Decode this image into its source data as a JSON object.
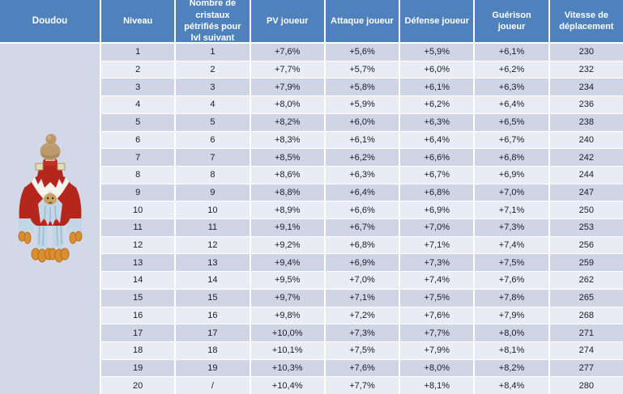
{
  "table": {
    "columns": [
      "Doudou",
      "Niveau",
      "Nombre de cristaux pétrifiés pour lvl suivant",
      "PV joueur",
      "Attaque joueur",
      "Défense joueur",
      "Guérison joueur",
      "Vitesse de déplacement"
    ],
    "rows": [
      [
        "1",
        "1",
        "+7,6%",
        "+5,6%",
        "+5,9%",
        "+6,1%",
        "230"
      ],
      [
        "2",
        "2",
        "+7,7%",
        "+5,7%",
        "+6,0%",
        "+6,2%",
        "232"
      ],
      [
        "3",
        "3",
        "+7,9%",
        "+5,8%",
        "+6,1%",
        "+6,3%",
        "234"
      ],
      [
        "4",
        "4",
        "+8,0%",
        "+5,9%",
        "+6,2%",
        "+6,4%",
        "236"
      ],
      [
        "5",
        "5",
        "+8,2%",
        "+6,0%",
        "+6,3%",
        "+6,5%",
        "238"
      ],
      [
        "6",
        "6",
        "+8,3%",
        "+6,1%",
        "+6,4%",
        "+6,7%",
        "240"
      ],
      [
        "7",
        "7",
        "+8,5%",
        "+6,2%",
        "+6,6%",
        "+6,8%",
        "242"
      ],
      [
        "8",
        "8",
        "+8,6%",
        "+6,3%",
        "+6,7%",
        "+6,9%",
        "244"
      ],
      [
        "9",
        "9",
        "+8,8%",
        "+6,4%",
        "+6,8%",
        "+7,0%",
        "247"
      ],
      [
        "10",
        "10",
        "+8,9%",
        "+6,6%",
        "+6,9%",
        "+7,1%",
        "250"
      ],
      [
        "11",
        "11",
        "+9,1%",
        "+6,7%",
        "+7,0%",
        "+7,3%",
        "253"
      ],
      [
        "12",
        "12",
        "+9,2%",
        "+6,8%",
        "+7,1%",
        "+7,4%",
        "256"
      ],
      [
        "13",
        "13",
        "+9,4%",
        "+6,9%",
        "+7,3%",
        "+7,5%",
        "259"
      ],
      [
        "14",
        "14",
        "+9,5%",
        "+7,0%",
        "+7,4%",
        "+7,6%",
        "262"
      ],
      [
        "15",
        "15",
        "+9,7%",
        "+7,1%",
        "+7,5%",
        "+7,8%",
        "265"
      ],
      [
        "16",
        "16",
        "+9,8%",
        "+7,2%",
        "+7,6%",
        "+7,9%",
        "268"
      ],
      [
        "17",
        "17",
        "+10,0%",
        "+7,3%",
        "+7,7%",
        "+8,0%",
        "271"
      ],
      [
        "18",
        "18",
        "+10,1%",
        "+7,5%",
        "+7,9%",
        "+8,1%",
        "274"
      ],
      [
        "19",
        "19",
        "+10,3%",
        "+7,6%",
        "+8,0%",
        "+8,2%",
        "277"
      ],
      [
        "20",
        "/",
        "+10,4%",
        "+7,7%",
        "+8,1%",
        "+8,4%",
        "280"
      ]
    ]
  },
  "creature_image": "doudou-pet-sprite",
  "colors": {
    "header_bg": "#4f81bd",
    "header_text": "#ffffff",
    "row_odd_bg": "#cfd5e5",
    "row_even_bg": "#e9ecf4",
    "doudou_cell_bg": "#d2d8e7",
    "body_text": "#1c1c28",
    "grid_border": "#ffffff",
    "creature_red": "#b5271d",
    "creature_feathers": "#c2d7e6",
    "creature_claws": "#d98e2f"
  }
}
